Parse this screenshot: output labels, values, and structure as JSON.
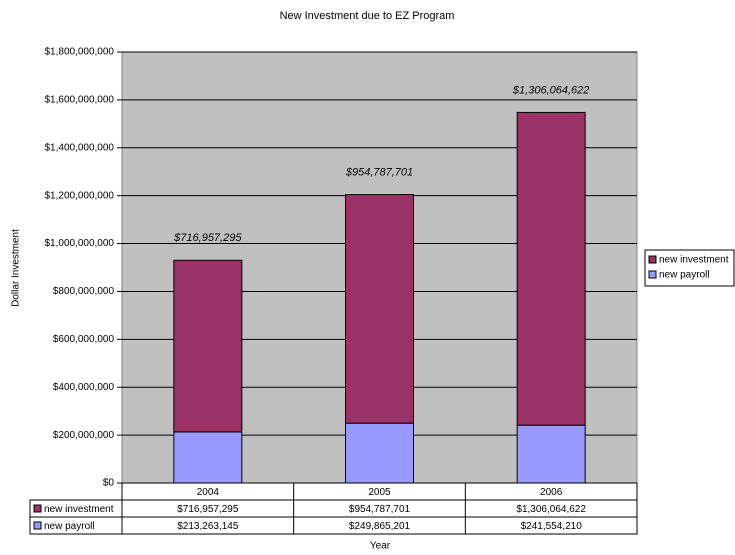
{
  "chart_data": {
    "type": "stacked-bar",
    "title": "New Investment due to EZ Program",
    "y_label": "Dollar Investment",
    "x_label": "Year",
    "categories": [
      "2004",
      "2005",
      "2006"
    ],
    "series": [
      {
        "name": "new payroll",
        "color": "#9999ff",
        "values": [
          213263145,
          249865201,
          241554210
        ],
        "value_labels": [
          "$213,263,145",
          "$249,865,201",
          "$241,554,210"
        ]
      },
      {
        "name": "new investment",
        "color": "#993366",
        "values": [
          716957295,
          954787701,
          1306064622
        ],
        "value_labels": [
          "$716,957,295",
          "$954,787,701",
          "$1,306,064,622"
        ]
      }
    ],
    "ylim": [
      0,
      1800000000
    ],
    "yticks": [
      {
        "value": 0,
        "label": "$0"
      },
      {
        "value": 200000000,
        "label": "$200,000,000"
      },
      {
        "value": 400000000,
        "label": "$400,000,000"
      },
      {
        "value": 600000000,
        "label": "$600,000,000"
      },
      {
        "value": 800000000,
        "label": "$800,000,000"
      },
      {
        "value": 1000000000,
        "label": "$1,000,000,000"
      },
      {
        "value": 1200000000,
        "label": "$1,200,000,000"
      },
      {
        "value": 1400000000,
        "label": "$1,400,000,000"
      },
      {
        "value": 1600000000,
        "label": "$1,600,000,000"
      },
      {
        "value": 1800000000,
        "label": "$1,800,000,000"
      }
    ],
    "grid": true,
    "plot_background": "#c0c0c0",
    "legend": "right"
  }
}
